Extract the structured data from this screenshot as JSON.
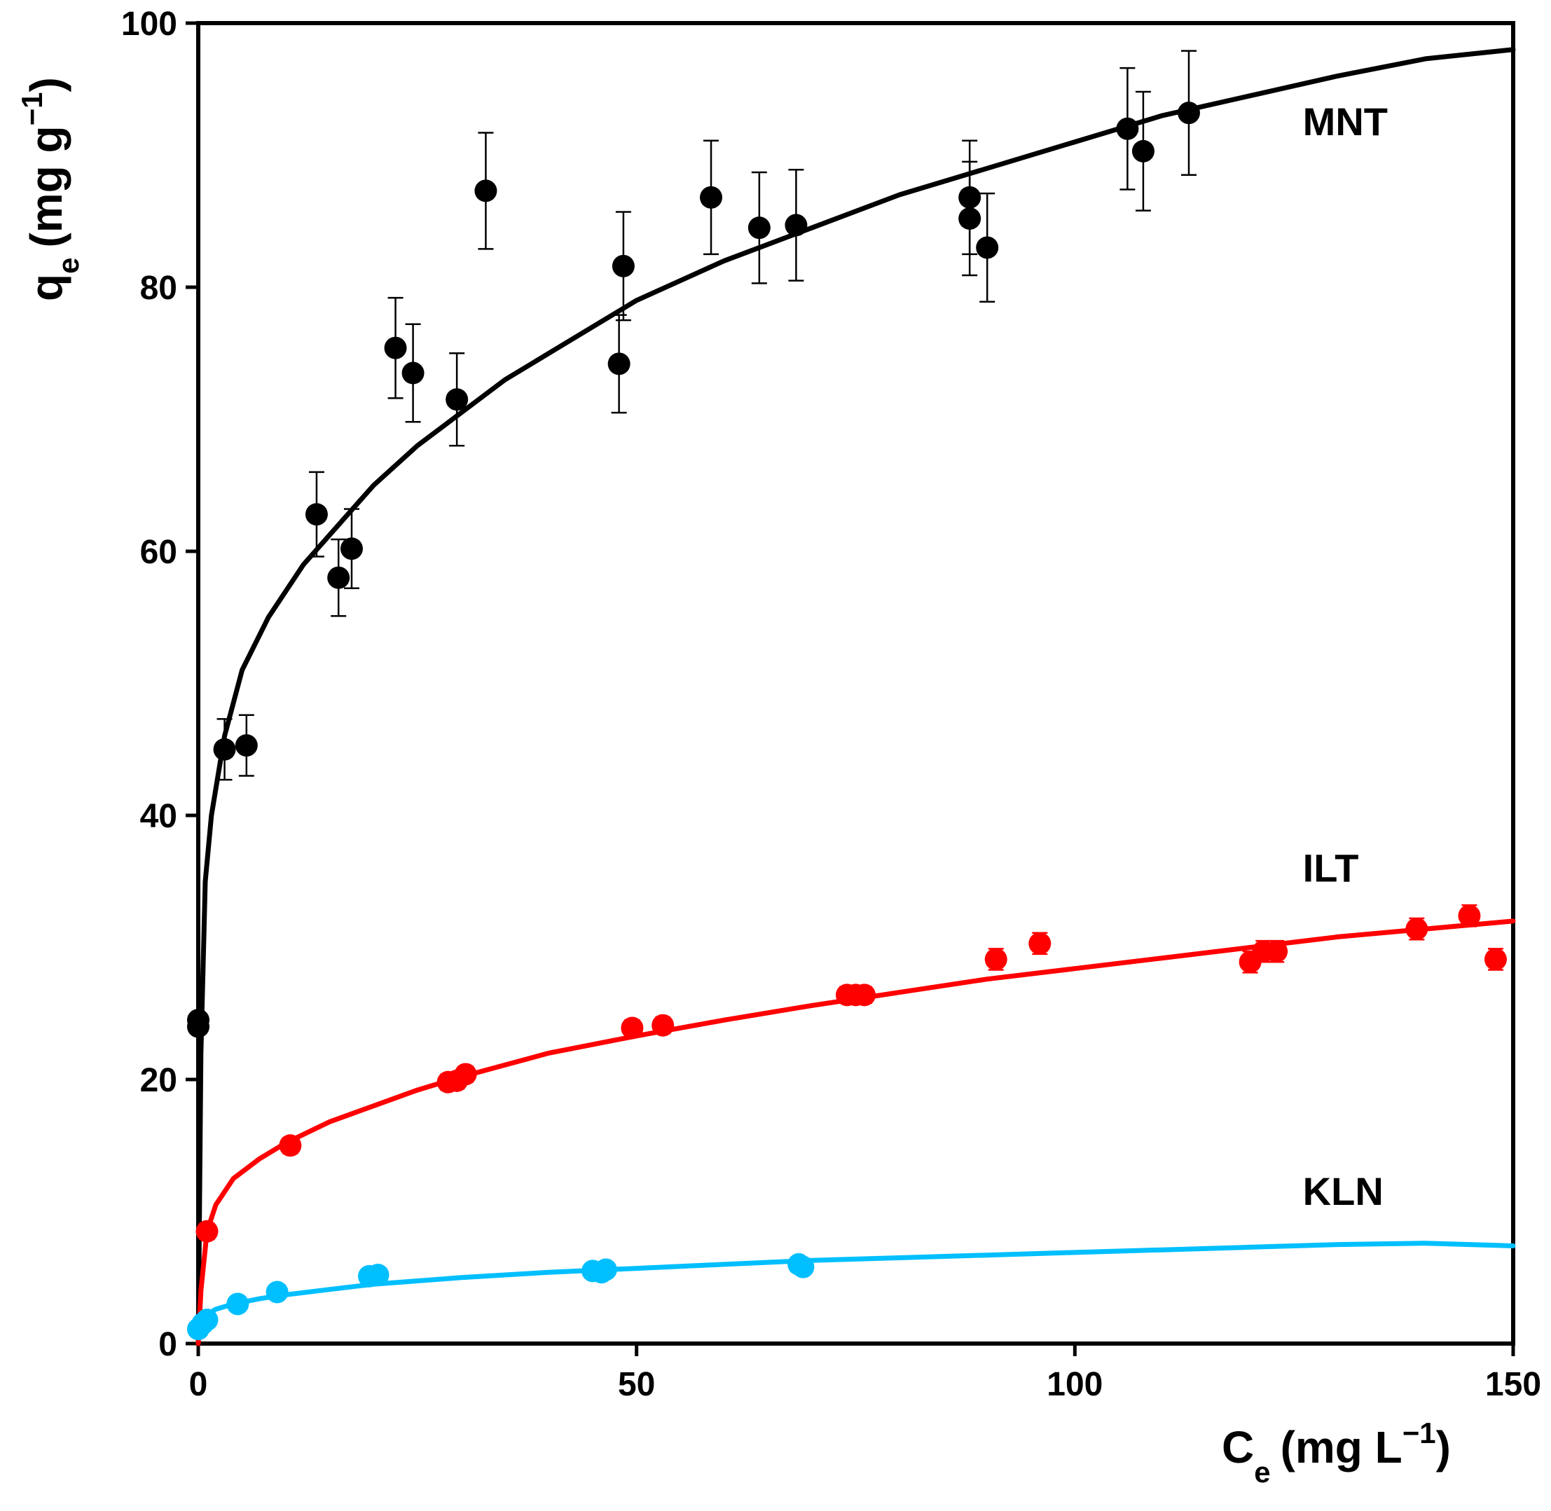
{
  "chart_data": {
    "type": "scatter",
    "title": "",
    "xlabel": {
      "main": "C",
      "sub": "e",
      "units": "(mg L",
      "sup": "−1",
      "close": ")"
    },
    "ylabel": {
      "main": "q",
      "sub": "e",
      "units": "(mg g",
      "sup": "−1",
      "close": ")"
    },
    "xlim": [
      0,
      150
    ],
    "ylim": [
      0,
      100
    ],
    "xticks": [
      0,
      50,
      100,
      150
    ],
    "xtick_labels": [
      "0",
      "50",
      "100",
      "150"
    ],
    "yticks": [
      0,
      20,
      40,
      60,
      80,
      100
    ],
    "ytick_labels": [
      "0",
      "20",
      "40",
      "60",
      "80",
      "100"
    ],
    "grid": false,
    "series": [
      {
        "name": "MNT",
        "color": "#000000",
        "fit_curve": [
          [
            0,
            0
          ],
          [
            0.3,
            22
          ],
          [
            0.8,
            35
          ],
          [
            1.5,
            40
          ],
          [
            3,
            46
          ],
          [
            5,
            51
          ],
          [
            8,
            55
          ],
          [
            12,
            59
          ],
          [
            16,
            62
          ],
          [
            20,
            65
          ],
          [
            25,
            68
          ],
          [
            30,
            70.5
          ],
          [
            35,
            73
          ],
          [
            40,
            75
          ],
          [
            50,
            79
          ],
          [
            60,
            82
          ],
          [
            70,
            84.5
          ],
          [
            80,
            87
          ],
          [
            90,
            89
          ],
          [
            100,
            91
          ],
          [
            110,
            93
          ],
          [
            120,
            94.5
          ],
          [
            130,
            96
          ],
          [
            140,
            97.3
          ],
          [
            150,
            98
          ]
        ],
        "points": [
          {
            "x": 0,
            "y": 24.5,
            "err": 0
          },
          {
            "x": 0,
            "y": 24.0,
            "err": 0
          },
          {
            "x": 3,
            "y": 45,
            "err": 2.3
          },
          {
            "x": 5.5,
            "y": 45.3,
            "err": 2.3
          },
          {
            "x": 13.5,
            "y": 62.8,
            "err": 3.2
          },
          {
            "x": 16,
            "y": 58,
            "err": 2.9
          },
          {
            "x": 17.5,
            "y": 60.2,
            "err": 3.0
          },
          {
            "x": 22.5,
            "y": 75.4,
            "err": 3.8
          },
          {
            "x": 24.5,
            "y": 73.5,
            "err": 3.7
          },
          {
            "x": 29.5,
            "y": 71.5,
            "err": 3.5
          },
          {
            "x": 32.8,
            "y": 87.3,
            "err": 4.4
          },
          {
            "x": 48,
            "y": 74.2,
            "err": 3.7
          },
          {
            "x": 48.5,
            "y": 81.6,
            "err": 4.1
          },
          {
            "x": 58.5,
            "y": 86.8,
            "err": 4.3
          },
          {
            "x": 64,
            "y": 84.5,
            "err": 4.2
          },
          {
            "x": 68.2,
            "y": 84.7,
            "err": 4.2
          },
          {
            "x": 88,
            "y": 86.8,
            "err": 4.3
          },
          {
            "x": 88,
            "y": 85.2,
            "err": 4.3
          },
          {
            "x": 90,
            "y": 83,
            "err": 4.1
          },
          {
            "x": 106,
            "y": 92,
            "err": 4.6
          },
          {
            "x": 107.8,
            "y": 90.3,
            "err": 4.5
          },
          {
            "x": 113,
            "y": 93.2,
            "err": 4.7
          }
        ]
      },
      {
        "name": "ILT",
        "color": "#ff0000",
        "fit_curve": [
          [
            0,
            0
          ],
          [
            0.3,
            4
          ],
          [
            1,
            8.5
          ],
          [
            2,
            10.5
          ],
          [
            4,
            12.5
          ],
          [
            7,
            14
          ],
          [
            10,
            15.2
          ],
          [
            15,
            16.8
          ],
          [
            20,
            18
          ],
          [
            25,
            19.2
          ],
          [
            30,
            20.2
          ],
          [
            40,
            22
          ],
          [
            50,
            23.3
          ],
          [
            60,
            24.5
          ],
          [
            70,
            25.6
          ],
          [
            80,
            26.6
          ],
          [
            90,
            27.6
          ],
          [
            100,
            28.4
          ],
          [
            110,
            29.2
          ],
          [
            120,
            30
          ],
          [
            130,
            30.8
          ],
          [
            140,
            31.4
          ],
          [
            150,
            32
          ]
        ],
        "points": [
          {
            "x": 1,
            "y": 8.5,
            "err": 0.6
          },
          {
            "x": 10.5,
            "y": 15,
            "err": 0.6
          },
          {
            "x": 28.5,
            "y": 19.8,
            "err": 0.6
          },
          {
            "x": 29.5,
            "y": 19.9,
            "err": 0.6
          },
          {
            "x": 30.5,
            "y": 20.4,
            "err": 0.6
          },
          {
            "x": 49.5,
            "y": 23.9,
            "err": 0.6
          },
          {
            "x": 53,
            "y": 24.1,
            "err": 0.6
          },
          {
            "x": 74,
            "y": 26.4,
            "err": 0.6
          },
          {
            "x": 75,
            "y": 26.4,
            "err": 0.6
          },
          {
            "x": 76,
            "y": 26.4,
            "err": 0.6
          },
          {
            "x": 91,
            "y": 29.1,
            "err": 0.8
          },
          {
            "x": 96,
            "y": 30.3,
            "err": 0.8
          },
          {
            "x": 120,
            "y": 28.9,
            "err": 0.8
          },
          {
            "x": 121.5,
            "y": 29.7,
            "err": 0.8
          },
          {
            "x": 123,
            "y": 29.7,
            "err": 0.8
          },
          {
            "x": 139,
            "y": 31.4,
            "err": 0.8
          },
          {
            "x": 145,
            "y": 32.4,
            "err": 0.8
          },
          {
            "x": 148,
            "y": 29.1,
            "err": 0.8
          }
        ]
      },
      {
        "name": "KLN",
        "color": "#00bfff",
        "fit_curve": [
          [
            0,
            1.2
          ],
          [
            0.5,
            1.8
          ],
          [
            1,
            2.2
          ],
          [
            2,
            2.6
          ],
          [
            4,
            3.0
          ],
          [
            7,
            3.4
          ],
          [
            10,
            3.7
          ],
          [
            15,
            4.1
          ],
          [
            20,
            4.5
          ],
          [
            30,
            5.0
          ],
          [
            40,
            5.4
          ],
          [
            50,
            5.7
          ],
          [
            60,
            6.0
          ],
          [
            70,
            6.3
          ],
          [
            80,
            6.5
          ],
          [
            90,
            6.7
          ],
          [
            100,
            6.9
          ],
          [
            110,
            7.1
          ],
          [
            120,
            7.3
          ],
          [
            130,
            7.5
          ],
          [
            140,
            7.6
          ],
          [
            150,
            7.4
          ]
        ],
        "points": [
          {
            "x": 0,
            "y": 1.1,
            "err": 0
          },
          {
            "x": 0.5,
            "y": 1.5,
            "err": 0
          },
          {
            "x": 1,
            "y": 1.8,
            "err": 0
          },
          {
            "x": 4.5,
            "y": 3.0,
            "err": 0
          },
          {
            "x": 9,
            "y": 3.9,
            "err": 0
          },
          {
            "x": 19.5,
            "y": 5.1,
            "err": 0
          },
          {
            "x": 20.5,
            "y": 5.2,
            "err": 0
          },
          {
            "x": 45,
            "y": 5.5,
            "err": 0
          },
          {
            "x": 46,
            "y": 5.4,
            "err": 0
          },
          {
            "x": 46.5,
            "y": 5.6,
            "err": 0
          },
          {
            "x": 68.5,
            "y": 6.0,
            "err": 0
          },
          {
            "x": 69,
            "y": 5.8,
            "err": 0
          }
        ]
      }
    ],
    "series_labels": [
      {
        "text": "MNT",
        "anchor_x": 126,
        "anchor_y": 91.5
      },
      {
        "text": "ILT",
        "anchor_x": 126,
        "anchor_y": 35
      },
      {
        "text": "KLN",
        "anchor_x": 126,
        "anchor_y": 10.5
      }
    ]
  }
}
